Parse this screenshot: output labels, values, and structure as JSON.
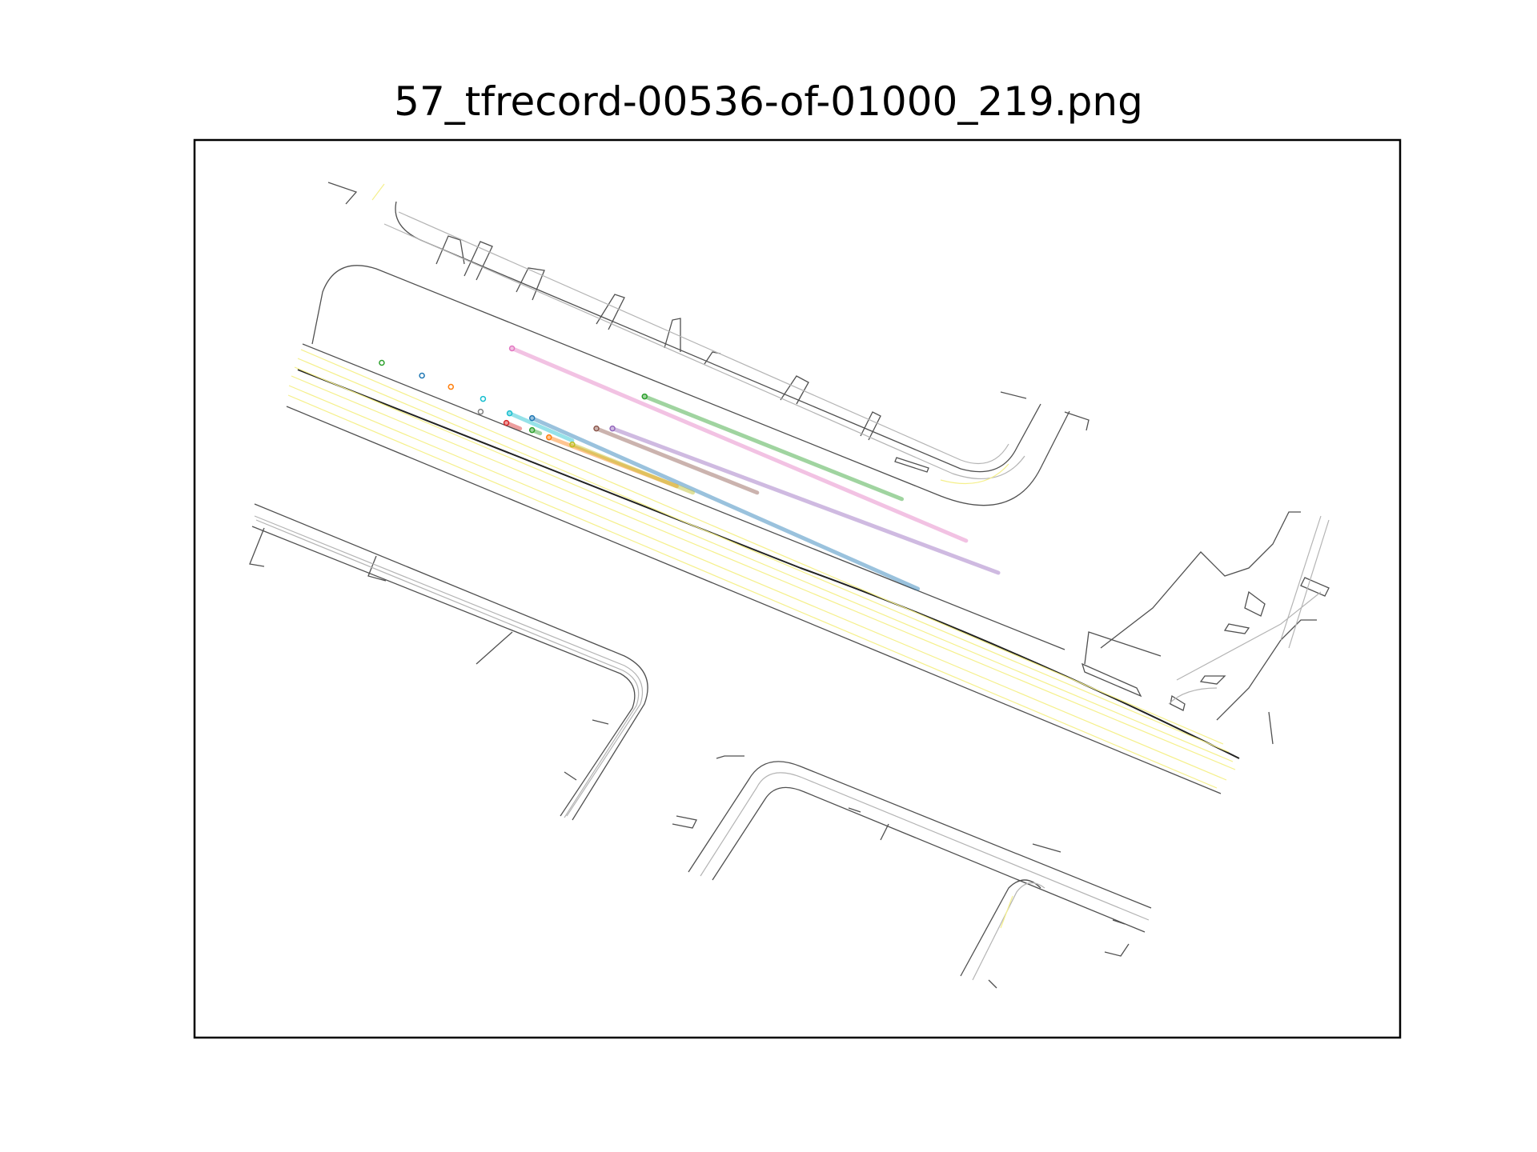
{
  "title": "57_tfrecord-00536-of-01000_219.png",
  "chart_data": {
    "type": "scatter",
    "title": "57_tfrecord-00536-of-01000_219.png",
    "xlabel": "",
    "ylabel": "",
    "grid": false,
    "legend": "none",
    "xlim": [
      0,
      1500
    ],
    "ylim": [
      0,
      1120
    ],
    "description_layers": [
      "road_edges",
      "lane_centers",
      "agent_trajectories"
    ],
    "colors": {
      "road_edge": "#505050",
      "lane_center": "#b4b4b4",
      "lane_yellow": "#f5f08c",
      "frame": "#000000"
    },
    "agents": [
      {
        "color": "#2ca02c",
        "start": [
          233,
          842
        ],
        "end": [
          233,
          842
        ]
      },
      {
        "color": "#1f77b4",
        "start": [
          283,
          826
        ],
        "end": [
          283,
          826
        ]
      },
      {
        "color": "#ff7f0e",
        "start": [
          319,
          812
        ],
        "end": [
          319,
          812
        ]
      },
      {
        "color": "#17becf",
        "start": [
          359,
          797
        ],
        "end": [
          359,
          797
        ]
      },
      {
        "color": "#7f7f7f",
        "start": [
          356,
          781
        ],
        "end": [
          356,
          781
        ]
      },
      {
        "color": "#17becf",
        "start": [
          392,
          779
        ],
        "end": [
          470,
          745
        ]
      },
      {
        "color": "#1f77b4",
        "start": [
          420,
          773
        ],
        "end": [
          900,
          560
        ]
      },
      {
        "color": "#d62728",
        "start": [
          388,
          767
        ],
        "end": [
          405,
          760
        ]
      },
      {
        "color": "#2ca02c",
        "start": [
          420,
          758
        ],
        "end": [
          430,
          754
        ]
      },
      {
        "color": "#ff7f0e",
        "start": [
          441,
          749
        ],
        "end": [
          600,
          688
        ]
      },
      {
        "color": "#bcbd22",
        "start": [
          470,
          740
        ],
        "end": [
          620,
          680
        ]
      },
      {
        "color": "#e377c2",
        "start": [
          395,
          860
        ],
        "end": [
          960,
          620
        ]
      },
      {
        "color": "#2ca02c",
        "start": [
          560,
          800
        ],
        "end": [
          880,
          672
        ]
      },
      {
        "color": "#9467bd",
        "start": [
          520,
          760
        ],
        "end": [
          1000,
          580
        ]
      },
      {
        "color": "#8c564b",
        "start": [
          500,
          760
        ],
        "end": [
          700,
          680
        ]
      }
    ]
  }
}
